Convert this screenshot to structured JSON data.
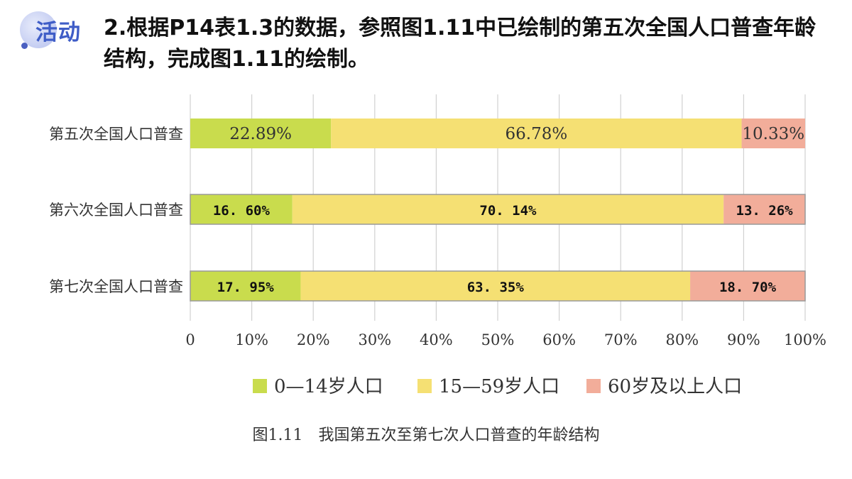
{
  "activity_badge": "活动",
  "instruction": "2.根据P14表1.3的数据，参照图1.11中已绘制的第五次全国人口普查年龄结构，完成图1.11的绘制。",
  "caption": {
    "number": "图1.11",
    "title": "我国第五次至第七次人口普查的年龄结构"
  },
  "chart_data": {
    "type": "bar",
    "orientation": "horizontal",
    "stacked": true,
    "categories": [
      "第五次全国人口普查",
      "第六次全国人口普查",
      "第七次全国人口普查"
    ],
    "series": [
      {
        "name": "0—14岁人口",
        "color": "#c9dc4d",
        "values": [
          22.89,
          16.6,
          17.95
        ],
        "labels": [
          "22.89%",
          "16. 60%",
          "17. 95%"
        ]
      },
      {
        "name": "15—59岁人口",
        "color": "#f5e073",
        "values": [
          66.78,
          70.14,
          63.35
        ],
        "labels": [
          "66.78%",
          "70. 14%",
          "63. 35%"
        ]
      },
      {
        "name": "60岁及以上人口",
        "color": "#f2ad9a",
        "values": [
          10.33,
          13.26,
          18.7
        ],
        "labels": [
          "10.33%",
          "13. 26%",
          "18. 70%"
        ]
      }
    ],
    "xlim": [
      0,
      100
    ],
    "xticks": [
      "0",
      "10%",
      "20%",
      "30%",
      "40%",
      "50%",
      "60%",
      "70%",
      "80%",
      "90%",
      "100%"
    ],
    "grid": true,
    "legend_position": "bottom"
  }
}
